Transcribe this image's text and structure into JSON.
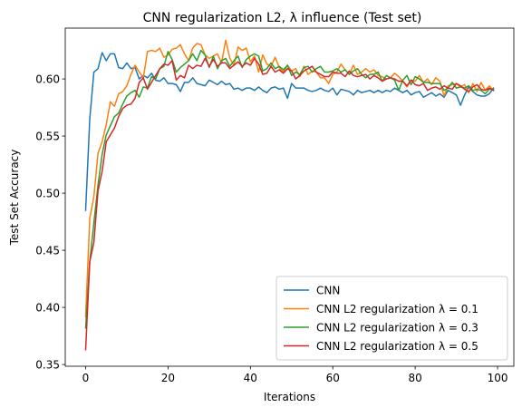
{
  "chart_data": {
    "type": "line",
    "title": "CNN regularization L2, λ influence (Test set)",
    "xlabel": "Iterations",
    "ylabel": "Test Set Accuracy",
    "xlim": [
      -4.95,
      103.95
    ],
    "ylim": [
      0.3485,
      0.6445
    ],
    "xticks": [
      0,
      20,
      40,
      60,
      80,
      100
    ],
    "yticks": [
      0.35,
      0.4,
      0.45,
      0.5,
      0.55,
      0.6
    ],
    "xtick_labels": [
      "0",
      "20",
      "40",
      "60",
      "80",
      "100"
    ],
    "ytick_labels": [
      "0.35",
      "0.40",
      "0.45",
      "0.50",
      "0.55",
      "0.60"
    ],
    "grid": false,
    "legend_position": "lower-right",
    "series": [
      {
        "name": "CNN",
        "color": "#1f77b4",
        "values": [
          0.485,
          0.565,
          0.606,
          0.609,
          0.623,
          0.616,
          0.622,
          0.622,
          0.61,
          0.609,
          0.614,
          0.609,
          0.61,
          0.6,
          0.603,
          0.601,
          0.605,
          0.599,
          0.598,
          0.601,
          0.596,
          0.596,
          0.595,
          0.589,
          0.597,
          0.597,
          0.601,
          0.596,
          0.595,
          0.594,
          0.599,
          0.597,
          0.595,
          0.598,
          0.595,
          0.596,
          0.591,
          0.592,
          0.59,
          0.592,
          0.592,
          0.59,
          0.593,
          0.59,
          0.588,
          0.592,
          0.593,
          0.591,
          0.592,
          0.583,
          0.596,
          0.592,
          0.592,
          0.592,
          0.59,
          0.589,
          0.59,
          0.592,
          0.59,
          0.589,
          0.592,
          0.586,
          0.591,
          0.59,
          0.589,
          0.586,
          0.59,
          0.588,
          0.589,
          0.59,
          0.588,
          0.59,
          0.588,
          0.59,
          0.589,
          0.592,
          0.59,
          0.588,
          0.59,
          0.586,
          0.588,
          0.589,
          0.584,
          0.586,
          0.588,
          0.585,
          0.587,
          0.584,
          0.59,
          0.588,
          0.586,
          0.577,
          0.586,
          0.593,
          0.589,
          0.586,
          0.585,
          0.585,
          0.587,
          0.592
        ]
      },
      {
        "name": "CNN L2 regularization λ = 0.1",
        "color": "#ff7f0e",
        "values": [
          0.392,
          0.478,
          0.497,
          0.535,
          0.545,
          0.56,
          0.58,
          0.576,
          0.587,
          0.589,
          0.594,
          0.604,
          0.612,
          0.606,
          0.601,
          0.624,
          0.625,
          0.624,
          0.627,
          0.619,
          0.621,
          0.626,
          0.627,
          0.63,
          0.622,
          0.616,
          0.627,
          0.631,
          0.63,
          0.621,
          0.618,
          0.62,
          0.622,
          0.614,
          0.634,
          0.618,
          0.612,
          0.628,
          0.625,
          0.627,
          0.615,
          0.62,
          0.606,
          0.621,
          0.613,
          0.611,
          0.619,
          0.61,
          0.606,
          0.612,
          0.607,
          0.609,
          0.602,
          0.611,
          0.604,
          0.607,
          0.606,
          0.601,
          0.601,
          0.596,
          0.604,
          0.606,
          0.613,
          0.608,
          0.604,
          0.612,
          0.604,
          0.606,
          0.609,
          0.606,
          0.608,
          0.603,
          0.602,
          0.6,
          0.601,
          0.605,
          0.602,
          0.598,
          0.593,
          0.599,
          0.598,
          0.603,
          0.597,
          0.6,
          0.595,
          0.601,
          0.598,
          0.585,
          0.594,
          0.595,
          0.596,
          0.593,
          0.595,
          0.588,
          0.596,
          0.589,
          0.597,
          0.59,
          0.594,
          0.59
        ]
      },
      {
        "name": "CNN L2 regularization λ = 0.3",
        "color": "#2ca02c",
        "values": [
          0.382,
          0.44,
          0.474,
          0.507,
          0.534,
          0.551,
          0.559,
          0.567,
          0.57,
          0.578,
          0.585,
          0.588,
          0.59,
          0.584,
          0.593,
          0.592,
          0.602,
          0.6,
          0.609,
          0.611,
          0.624,
          0.617,
          0.606,
          0.61,
          0.613,
          0.616,
          0.622,
          0.616,
          0.625,
          0.621,
          0.61,
          0.62,
          0.609,
          0.616,
          0.618,
          0.611,
          0.616,
          0.62,
          0.61,
          0.617,
          0.62,
          0.622,
          0.62,
          0.607,
          0.609,
          0.614,
          0.609,
          0.611,
          0.608,
          0.612,
          0.603,
          0.606,
          0.604,
          0.61,
          0.611,
          0.606,
          0.609,
          0.611,
          0.606,
          0.606,
          0.607,
          0.609,
          0.606,
          0.608,
          0.604,
          0.607,
          0.609,
          0.604,
          0.601,
          0.604,
          0.604,
          0.606,
          0.598,
          0.603,
          0.601,
          0.599,
          0.59,
          0.599,
          0.603,
          0.595,
          0.602,
          0.6,
          0.597,
          0.597,
          0.596,
          0.596,
          0.596,
          0.59,
          0.592,
          0.597,
          0.592,
          0.593,
          0.592,
          0.594,
          0.59,
          0.591,
          0.59,
          0.587,
          0.591,
          0.591
        ]
      },
      {
        "name": "CNN L2 regularization λ = 0.5",
        "color": "#d62728",
        "values": [
          0.363,
          0.44,
          0.457,
          0.502,
          0.519,
          0.545,
          0.551,
          0.557,
          0.567,
          0.574,
          0.577,
          0.578,
          0.583,
          0.597,
          0.601,
          0.591,
          0.597,
          0.603,
          0.609,
          0.613,
          0.612,
          0.616,
          0.599,
          0.603,
          0.601,
          0.612,
          0.609,
          0.612,
          0.611,
          0.618,
          0.611,
          0.617,
          0.611,
          0.614,
          0.614,
          0.609,
          0.612,
          0.615,
          0.611,
          0.614,
          0.612,
          0.618,
          0.613,
          0.604,
          0.605,
          0.611,
          0.606,
          0.608,
          0.605,
          0.609,
          0.607,
          0.6,
          0.603,
          0.607,
          0.609,
          0.611,
          0.606,
          0.604,
          0.602,
          0.602,
          0.606,
          0.605,
          0.605,
          0.602,
          0.607,
          0.603,
          0.602,
          0.603,
          0.604,
          0.6,
          0.603,
          0.601,
          0.598,
          0.6,
          0.601,
          0.6,
          0.598,
          0.598,
          0.594,
          0.599,
          0.595,
          0.594,
          0.596,
          0.59,
          0.592,
          0.593,
          0.591,
          0.594,
          0.592,
          0.591,
          0.596,
          0.594,
          0.591,
          0.589,
          0.593,
          0.595,
          0.591,
          0.59,
          0.592,
          0.59
        ]
      }
    ]
  }
}
